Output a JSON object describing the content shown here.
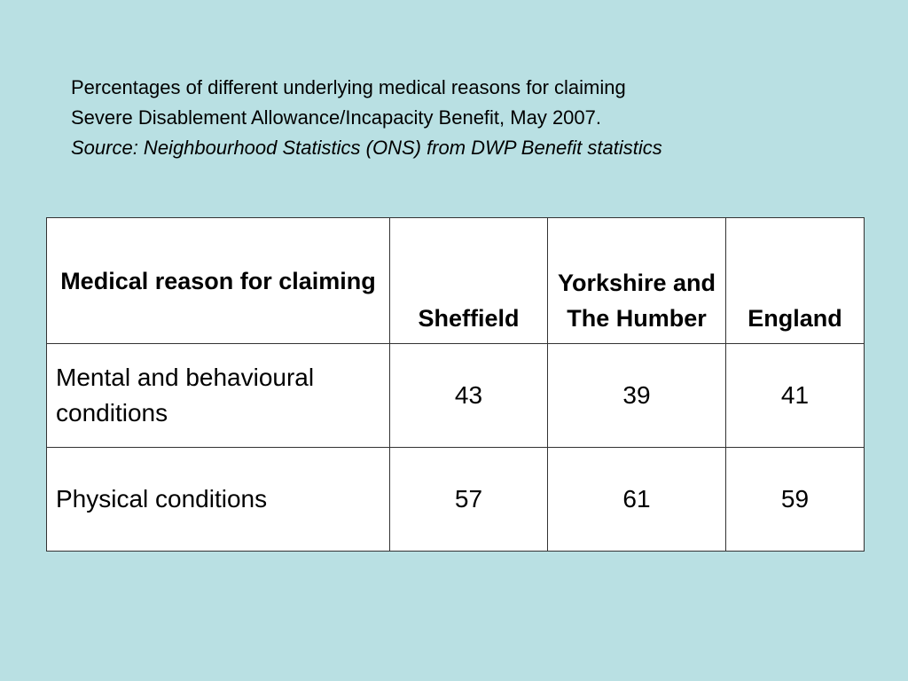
{
  "caption": {
    "lines": [
      "Percentages of different underlying medical reasons for claiming",
      "Severe Disablement Allowance/Incapacity Benefit, May 2007."
    ],
    "source": "Source: Neighbourhood Statistics (ONS) from DWP Benefit statistics"
  },
  "table": {
    "header": [
      "Medical reason for claiming",
      "Sheffield",
      "Yorkshire and The Humber",
      "England"
    ],
    "rows": [
      [
        "Mental and behavioural conditions",
        43,
        39,
        41
      ],
      [
        "Physical conditions",
        57,
        61,
        59
      ]
    ]
  }
}
